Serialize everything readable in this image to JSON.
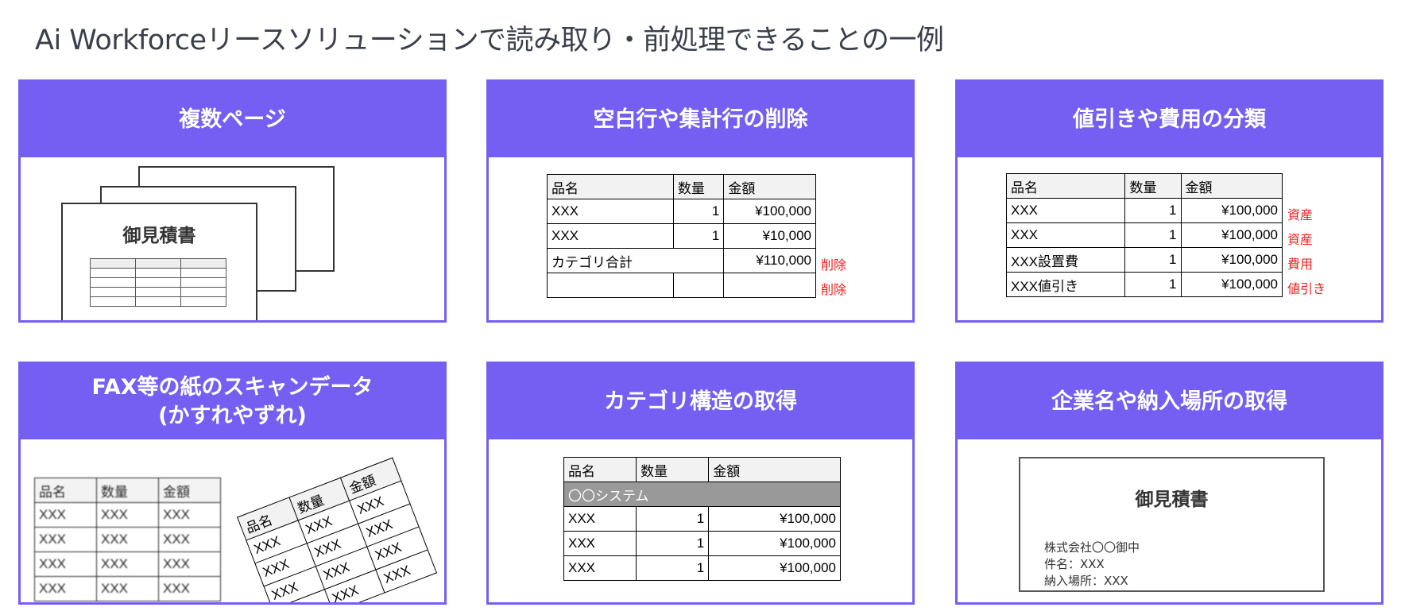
{
  "title": "Ai Workforceリースソリューションで読み取り・前処理できることの一例",
  "colors": {
    "accent": "#745ff2",
    "red": "#f21d1d"
  },
  "cards": [
    {
      "title": "複数ページ",
      "doc_title": "御見積書"
    },
    {
      "title": "空白行や集計行の削除",
      "headers": [
        "品名",
        "数量",
        "金額"
      ],
      "rows": [
        [
          "XXX",
          "1",
          "¥100,000",
          ""
        ],
        [
          "XXX",
          "1",
          "¥10,000",
          ""
        ],
        [
          "カテゴリ合計",
          "",
          "¥110,000",
          "削除"
        ],
        [
          "",
          "",
          "",
          "削除"
        ]
      ]
    },
    {
      "title": "値引きや費用の分類",
      "headers": [
        "品名",
        "数量",
        "金額"
      ],
      "rows": [
        [
          "XXX",
          "1",
          "¥100,000",
          "資産"
        ],
        [
          "XXX",
          "1",
          "¥100,000",
          "資産"
        ],
        [
          "XXX設置費",
          "1",
          "¥100,000",
          "費用"
        ],
        [
          "XXX値引き",
          "1",
          "¥100,000",
          "値引き"
        ]
      ]
    },
    {
      "title": "FAX等の紙のスキャンデータ",
      "title2": "(かすれやずれ)",
      "headers": [
        "品名",
        "数量",
        "金額"
      ],
      "cell": "XXX"
    },
    {
      "title": "カテゴリ構造の取得",
      "headers": [
        "品名",
        "数量",
        "金額"
      ],
      "category": "〇〇システム",
      "rows": [
        [
          "XXX",
          "1",
          "¥100,000"
        ],
        [
          "XXX",
          "1",
          "¥100,000"
        ],
        [
          "XXX",
          "1",
          "¥100,000"
        ]
      ]
    },
    {
      "title": "企業名や納入場所の取得",
      "doc_title": "御見積書",
      "lines": [
        "株式会社〇〇御中",
        "件名：XXX",
        "納入場所：XXX"
      ]
    }
  ]
}
